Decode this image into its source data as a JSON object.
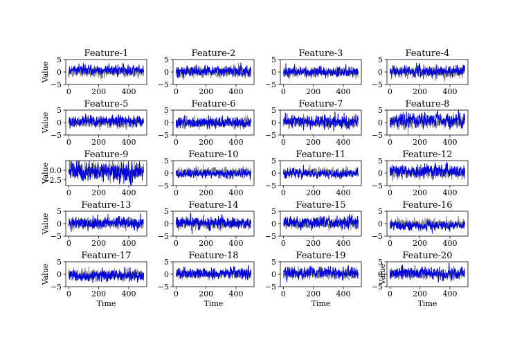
{
  "chart_data": {
    "type": "line",
    "layout": "grid of 5 rows x 4 columns of small multiples",
    "xlabel": "Time",
    "ylabel": "Value",
    "xlim": [
      -20,
      520
    ],
    "xticks": [
      0,
      200,
      400
    ],
    "series_colors": {
      "background": "#808080",
      "foreground": "#0000dd"
    },
    "n_points": 500,
    "panels": [
      {
        "title": "Feature-1",
        "ylim": [
          -5,
          5
        ],
        "yticks": [
          -5,
          0,
          5
        ],
        "ytick_labels": [
          "−5",
          "0",
          "5"
        ],
        "gray_amp": 1.0,
        "blue_amp": 0.9,
        "gray_bias": 0.0,
        "blue_bias": 0.8
      },
      {
        "title": "Feature-2",
        "ylim": [
          -5,
          5
        ],
        "yticks": [
          -5,
          0,
          5
        ],
        "ytick_labels": [
          "−5",
          "0",
          "5"
        ],
        "gray_amp": 1.0,
        "blue_amp": 1.0,
        "gray_bias": 0.0,
        "blue_bias": 0.3
      },
      {
        "title": "Feature-3",
        "ylim": [
          -5,
          5
        ],
        "yticks": [
          -5,
          0,
          5
        ],
        "ytick_labels": [
          "−5",
          "0",
          "5"
        ],
        "gray_amp": 0.9,
        "blue_amp": 0.9,
        "gray_bias": 0.0,
        "blue_bias": 0.0
      },
      {
        "title": "Feature-4",
        "ylim": [
          -5,
          5
        ],
        "yticks": [
          -5,
          0,
          5
        ],
        "ytick_labels": [
          "−5",
          "0",
          "5"
        ],
        "gray_amp": 1.0,
        "blue_amp": 1.0,
        "gray_bias": 0.0,
        "blue_bias": 0.3
      },
      {
        "title": "Feature-5",
        "ylim": [
          -5,
          5
        ],
        "yticks": [
          -5,
          0,
          5
        ],
        "ytick_labels": [
          "−5",
          "0",
          "5"
        ],
        "gray_amp": 1.0,
        "blue_amp": 1.0,
        "gray_bias": 0.0,
        "blue_bias": 0.5
      },
      {
        "title": "Feature-6",
        "ylim": [
          -5,
          5
        ],
        "yticks": [
          -5,
          0,
          5
        ],
        "ytick_labels": [
          "−5",
          "0",
          "5"
        ],
        "gray_amp": 1.0,
        "blue_amp": 1.0,
        "gray_bias": 0.0,
        "blue_bias": 0.0
      },
      {
        "title": "Feature-7",
        "ylim": [
          -5,
          5
        ],
        "yticks": [
          -5,
          0,
          5
        ],
        "ytick_labels": [
          "−5",
          "0",
          "5"
        ],
        "gray_amp": 1.0,
        "blue_amp": 1.1,
        "gray_bias": 0.0,
        "blue_bias": 0.5
      },
      {
        "title": "Feature-8",
        "ylim": [
          -5,
          5
        ],
        "yticks": [
          -5,
          0,
          5
        ],
        "ytick_labels": [
          "−5",
          "0",
          "5"
        ],
        "gray_amp": 1.2,
        "blue_amp": 1.3,
        "gray_bias": 0.0,
        "blue_bias": 0.8
      },
      {
        "title": "Feature-9",
        "ylim": [
          -4,
          2.6
        ],
        "yticks": [
          -2.5,
          0.0
        ],
        "ytick_labels": [
          "−2.5",
          "0.0"
        ],
        "gray_amp": 1.1,
        "blue_amp": 1.1,
        "gray_bias": 0.0,
        "blue_bias": -0.4
      },
      {
        "title": "Feature-10",
        "ylim": [
          -5,
          5
        ],
        "yticks": [
          -5,
          0,
          5
        ],
        "ytick_labels": [
          "−5",
          "0",
          "5"
        ],
        "gray_amp": 0.9,
        "blue_amp": 0.8,
        "gray_bias": 0.5,
        "blue_bias": -0.2
      },
      {
        "title": "Feature-11",
        "ylim": [
          -5,
          5
        ],
        "yticks": [
          -5,
          0,
          5
        ],
        "ytick_labels": [
          "−5",
          "0",
          "5"
        ],
        "gray_amp": 0.9,
        "blue_amp": 0.8,
        "gray_bias": 0.4,
        "blue_bias": -0.2
      },
      {
        "title": "Feature-12",
        "ylim": [
          -5,
          5
        ],
        "yticks": [
          -5,
          0,
          5
        ],
        "ytick_labels": [
          "−5",
          "0",
          "5"
        ],
        "gray_amp": 1.0,
        "blue_amp": 1.1,
        "gray_bias": 0.0,
        "blue_bias": 0.8
      },
      {
        "title": "Feature-13",
        "ylim": [
          -5,
          5
        ],
        "yticks": [
          -5,
          0,
          5
        ],
        "ytick_labels": [
          "−5",
          "0",
          "5"
        ],
        "gray_amp": 1.0,
        "blue_amp": 1.1,
        "gray_bias": 0.0,
        "blue_bias": 0.3
      },
      {
        "title": "Feature-14",
        "ylim": [
          -5,
          5
        ],
        "yticks": [
          -5,
          0,
          5
        ],
        "ytick_labels": [
          "−5",
          "0",
          "5"
        ],
        "gray_amp": 1.0,
        "blue_amp": 1.1,
        "gray_bias": 0.0,
        "blue_bias": 0.5
      },
      {
        "title": "Feature-15",
        "ylim": [
          -5,
          5
        ],
        "yticks": [
          -5,
          0,
          5
        ],
        "ytick_labels": [
          "−5",
          "0",
          "5"
        ],
        "gray_amp": 1.0,
        "blue_amp": 1.1,
        "gray_bias": 0.0,
        "blue_bias": 0.4
      },
      {
        "title": "Feature-16",
        "ylim": [
          -5,
          5
        ],
        "yticks": [
          -5,
          0,
          5
        ],
        "ytick_labels": [
          "−5",
          "0",
          "5"
        ],
        "gray_amp": 0.9,
        "blue_amp": 0.8,
        "gray_bias": 0.0,
        "blue_bias": -0.8
      },
      {
        "title": "Feature-17",
        "ylim": [
          -5,
          5
        ],
        "yticks": [
          -5,
          0,
          5
        ],
        "ytick_labels": [
          "−5",
          "0",
          "5"
        ],
        "gray_amp": 1.0,
        "blue_amp": 1.0,
        "gray_bias": 0.0,
        "blue_bias": -0.5
      },
      {
        "title": "Feature-18",
        "ylim": [
          -5,
          5
        ],
        "yticks": [
          -5,
          0,
          5
        ],
        "ytick_labels": [
          "−5",
          "0",
          "5"
        ],
        "gray_amp": 0.9,
        "blue_amp": 1.0,
        "gray_bias": 0.0,
        "blue_bias": 0.4
      },
      {
        "title": "Feature-19",
        "ylim": [
          -5,
          5
        ],
        "yticks": [
          -5,
          0,
          5
        ],
        "ytick_labels": [
          "−5",
          "0",
          "5"
        ],
        "gray_amp": 1.0,
        "blue_amp": 1.1,
        "gray_bias": 0.0,
        "blue_bias": 0.5
      },
      {
        "title": "Feature-20",
        "ylim": [
          -5,
          5
        ],
        "yticks": [
          -5,
          0,
          5
        ],
        "ytick_labels": [
          "−5",
          "0",
          "5"
        ],
        "gray_amp": 0.9,
        "blue_amp": 1.1,
        "gray_bias": 0.0,
        "blue_bias": 0.5
      }
    ]
  }
}
